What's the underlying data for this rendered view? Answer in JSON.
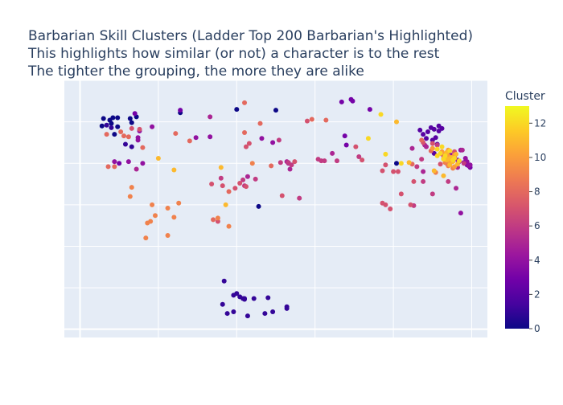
{
  "chart_data": {
    "type": "scatter",
    "title_lines": [
      "Barbarian Skill Clusters (Ladder Top 200 Barbarian's Highlighted)",
      "This highlights how similar (or not) a character is to the rest",
      "The tighter the grouping, the more they are alike"
    ],
    "xlabel": "",
    "ylabel": "",
    "xlim": [
      -1,
      26
    ],
    "ylim": [
      -1,
      30
    ],
    "show_tick_labels": false,
    "grid": true,
    "colorbar": {
      "title": "Cluster",
      "min": 0,
      "max": 13,
      "ticks": [
        0,
        2,
        4,
        6,
        8,
        10,
        12
      ],
      "colorscale": [
        "#0d0887",
        "#46039f",
        "#7201a8",
        "#9c179e",
        "#bd3786",
        "#d8576b",
        "#ed7953",
        "#fb9f3a",
        "#fdca26",
        "#f0f921"
      ]
    },
    "series": [
      {
        "name": "cluster 0",
        "cluster": 0,
        "points": [
          [
            1.5,
            25.4
          ],
          [
            1.9,
            25.2
          ],
          [
            2.1,
            25.5
          ],
          [
            2.4,
            25.5
          ],
          [
            1.4,
            24.5
          ],
          [
            2.0,
            24.8
          ],
          [
            2.4,
            24.4
          ],
          [
            3.2,
            25.4
          ],
          [
            3.6,
            25.6
          ],
          [
            3.3,
            24.9
          ],
          [
            2.2,
            23.5
          ],
          [
            12.5,
            26.4
          ],
          [
            11.4,
            14.8
          ],
          [
            20.2,
            20.0
          ],
          [
            6.4,
            26.1
          ],
          [
            10.0,
            26.5
          ]
        ]
      },
      {
        "name": "cluster 1",
        "cluster": 1,
        "points": [
          [
            1.7,
            24.6
          ],
          [
            2.0,
            24.3
          ],
          [
            2.9,
            22.3
          ],
          [
            3.3,
            22.0
          ],
          [
            9.2,
            5.8
          ],
          [
            9.8,
            4.1
          ],
          [
            10.0,
            4.3
          ],
          [
            10.5,
            3.7
          ],
          [
            11.1,
            3.7
          ],
          [
            9.1,
            3.0
          ],
          [
            9.8,
            2.1
          ],
          [
            9.4,
            1.9
          ],
          [
            10.2,
            3.9
          ],
          [
            10.7,
            1.6
          ],
          [
            10.4,
            3.7
          ],
          [
            11.8,
            1.9
          ],
          [
            12.3,
            2.1
          ],
          [
            13.2,
            2.7
          ],
          [
            13.2,
            2.5
          ],
          [
            12.0,
            3.8
          ],
          [
            10.5,
            3.6
          ]
        ]
      },
      {
        "name": "cluster 2",
        "cluster": 2,
        "points": [
          [
            22.4,
            24.3
          ],
          [
            22.9,
            24.5
          ],
          [
            23.1,
            24.2
          ],
          [
            22.6,
            24.1
          ],
          [
            22.2,
            23.8
          ],
          [
            21.9,
            23.5
          ],
          [
            21.7,
            24.0
          ],
          [
            22.7,
            23.1
          ],
          [
            22.5,
            22.8
          ],
          [
            22.8,
            22.3
          ],
          [
            22.6,
            21.2
          ],
          [
            23.4,
            20.9
          ],
          [
            22.1,
            23.0
          ],
          [
            22.9,
            23.9
          ]
        ]
      },
      {
        "name": "cluster 3",
        "cluster": 3,
        "points": [
          [
            17.3,
            27.7
          ],
          [
            16.7,
            27.4
          ],
          [
            17.4,
            27.5
          ],
          [
            16.9,
            23.3
          ],
          [
            17.0,
            22.2
          ],
          [
            18.5,
            26.5
          ],
          [
            2.5,
            20.0
          ],
          [
            3.5,
            26.0
          ],
          [
            6.4,
            26.4
          ],
          [
            24.5,
            20.1
          ],
          [
            24.9,
            19.5
          ],
          [
            24.7,
            19.8
          ]
        ]
      },
      {
        "name": "cluster 4",
        "cluster": 4,
        "points": [
          [
            7.4,
            23.1
          ],
          [
            8.3,
            23.2
          ],
          [
            11.6,
            23.0
          ],
          [
            12.3,
            22.5
          ],
          [
            4.6,
            24.4
          ],
          [
            3.7,
            23.1
          ],
          [
            3.1,
            20.2
          ],
          [
            4.0,
            20.0
          ],
          [
            3.8,
            23.9
          ],
          [
            3.7,
            22.8
          ],
          [
            2.2,
            20.2
          ],
          [
            23.6,
            21.1
          ],
          [
            23.9,
            20.8
          ],
          [
            24.6,
            20.6
          ],
          [
            24.8,
            19.7
          ],
          [
            24.0,
            19.6
          ],
          [
            24.3,
            21.6
          ],
          [
            24.1,
            20.4
          ],
          [
            24.2,
            20.2
          ],
          [
            24.7,
            20.2
          ],
          [
            24.3,
            14.0
          ],
          [
            23.7,
            20.9
          ],
          [
            24.9,
            19.8
          ]
        ]
      },
      {
        "name": "cluster 5",
        "cluster": 5,
        "points": [
          [
            8.3,
            25.6
          ],
          [
            13.3,
            20.0
          ],
          [
            13.4,
            19.3
          ],
          [
            13.2,
            20.2
          ],
          [
            24.1,
            19.5
          ],
          [
            24.4,
            21.6
          ],
          [
            24.0,
            17.0
          ],
          [
            21.9,
            19.0
          ],
          [
            22.1,
            22.0
          ],
          [
            23.6,
            19.9
          ],
          [
            22.0,
            22.2
          ],
          [
            21.2,
            21.8
          ],
          [
            10.7,
            18.4
          ],
          [
            16.1,
            21.2
          ],
          [
            3.6,
            19.3
          ]
        ]
      },
      {
        "name": "cluster 6",
        "cluster": 6,
        "points": [
          [
            15.6,
            20.3
          ],
          [
            15.2,
            20.5
          ],
          [
            16.4,
            20.3
          ],
          [
            15.4,
            20.3
          ],
          [
            12.7,
            22.8
          ],
          [
            21.9,
            17.8
          ],
          [
            21.3,
            14.9
          ],
          [
            22.5,
            16.3
          ],
          [
            23.4,
            20.0
          ],
          [
            22.8,
            22.2
          ],
          [
            24.5,
            20.0
          ],
          [
            14.0,
            15.8
          ],
          [
            21.8,
            20.5
          ],
          [
            21.5,
            19.6
          ],
          [
            9.0,
            18.2
          ],
          [
            11.2,
            18.1
          ],
          [
            12.8,
            20.1
          ],
          [
            13.5,
            19.8
          ],
          [
            10.4,
            18.0
          ],
          [
            17.8,
            20.8
          ],
          [
            13.3,
            20.1
          ],
          [
            10.5,
            17.3
          ],
          [
            23.5,
            17.8
          ],
          [
            23.9,
            21.3
          ]
        ]
      },
      {
        "name": "cluster 7",
        "cluster": 7,
        "points": [
          [
            8.4,
            17.5
          ],
          [
            9.1,
            17.3
          ],
          [
            9.9,
            17.0
          ],
          [
            10.6,
            17.2
          ],
          [
            10.2,
            17.6
          ],
          [
            20.3,
            19.0
          ],
          [
            20.5,
            16.3
          ],
          [
            21.1,
            15.0
          ],
          [
            19.8,
            14.5
          ],
          [
            19.3,
            19.1
          ],
          [
            20.0,
            19.0
          ],
          [
            19.5,
            19.8
          ],
          [
            19.5,
            15.0
          ],
          [
            21.3,
            17.8
          ],
          [
            8.8,
            13.0
          ],
          [
            19.3,
            15.2
          ],
          [
            10.8,
            22.4
          ],
          [
            18.0,
            20.4
          ],
          [
            23.1,
            21.1
          ],
          [
            13.7,
            20.2
          ],
          [
            12.9,
            16.1
          ],
          [
            22.5,
            22.4
          ],
          [
            21.9,
            22.5
          ],
          [
            23.0,
            19.9
          ],
          [
            23.9,
            21.4
          ],
          [
            17.6,
            22.0
          ],
          [
            3.8,
            24.1
          ],
          [
            3.3,
            24.2
          ],
          [
            10.6,
            22.0
          ],
          [
            14.5,
            25.1
          ]
        ]
      },
      {
        "name": "cluster 8",
        "cluster": 8,
        "points": [
          [
            1.8,
            19.6
          ],
          [
            4.0,
            21.9
          ],
          [
            1.7,
            23.5
          ],
          [
            2.6,
            23.8
          ],
          [
            3.1,
            23.2
          ],
          [
            6.1,
            23.6
          ],
          [
            14.8,
            25.3
          ],
          [
            11.5,
            24.8
          ],
          [
            10.5,
            27.3
          ],
          [
            15.7,
            25.2
          ],
          [
            2.2,
            19.6
          ],
          [
            7.0,
            22.7
          ],
          [
            10.5,
            23.7
          ],
          [
            12.2,
            19.7
          ],
          [
            8.5,
            13.2
          ],
          [
            2.8,
            23.3
          ],
          [
            9.5,
            16.6
          ],
          [
            21.8,
            22.8
          ],
          [
            22.4,
            21.5
          ],
          [
            21.2,
            19.9
          ]
        ]
      },
      {
        "name": "cluster 9",
        "cluster": 9,
        "points": [
          [
            3.3,
            17.1
          ],
          [
            3.2,
            16.0
          ],
          [
            5.6,
            11.3
          ],
          [
            4.3,
            12.8
          ],
          [
            5.6,
            14.6
          ],
          [
            6.3,
            15.2
          ],
          [
            6.0,
            13.5
          ],
          [
            4.8,
            13.7
          ],
          [
            4.6,
            15.0
          ],
          [
            4.5,
            13.0
          ],
          [
            4.2,
            11.0
          ],
          [
            9.5,
            12.4
          ],
          [
            11.0,
            20.0
          ],
          [
            8.8,
            13.4
          ],
          [
            23.5,
            19.7
          ],
          [
            23.3,
            20.1
          ],
          [
            23.8,
            19.4
          ],
          [
            22.7,
            18.9
          ]
        ]
      },
      {
        "name": "cluster 10",
        "cluster": 10,
        "points": [
          [
            23.2,
            20.6
          ],
          [
            23.3,
            21.1
          ],
          [
            23.5,
            20.9
          ],
          [
            23.1,
            21.4
          ],
          [
            23.9,
            21.0
          ],
          [
            23.7,
            20.5
          ],
          [
            23.5,
            21.6
          ],
          [
            23.6,
            20.0
          ],
          [
            22.5,
            21.8
          ],
          [
            23.9,
            19.6
          ]
        ]
      },
      {
        "name": "cluster 11",
        "cluster": 11,
        "points": [
          [
            5.0,
            20.6
          ],
          [
            9.0,
            19.5
          ],
          [
            9.3,
            15.0
          ],
          [
            6.0,
            19.2
          ],
          [
            21.0,
            20.1
          ],
          [
            23.2,
            18.5
          ],
          [
            22.6,
            19.1
          ],
          [
            23.8,
            20.2
          ],
          [
            24.1,
            19.9
          ],
          [
            23.7,
            20.7
          ],
          [
            23.4,
            20.4
          ],
          [
            24.0,
            21.1
          ],
          [
            23.4,
            21.3
          ],
          [
            23.5,
            20.5
          ],
          [
            20.2,
            25.0
          ],
          [
            23.6,
            19.8
          ]
        ]
      },
      {
        "name": "cluster 12",
        "cluster": 12,
        "points": [
          [
            23.0,
            21.2
          ],
          [
            23.3,
            20.9
          ],
          [
            23.2,
            20.5
          ],
          [
            22.8,
            20.9
          ],
          [
            23.9,
            20.6
          ],
          [
            19.5,
            21.1
          ],
          [
            20.5,
            20.0
          ],
          [
            23.8,
            20.4
          ],
          [
            23.6,
            21.5
          ],
          [
            18.4,
            23.0
          ],
          [
            19.2,
            25.9
          ],
          [
            22.8,
            21.7
          ],
          [
            23.1,
            22.0
          ],
          [
            24.2,
            20.3
          ]
        ]
      }
    ]
  }
}
